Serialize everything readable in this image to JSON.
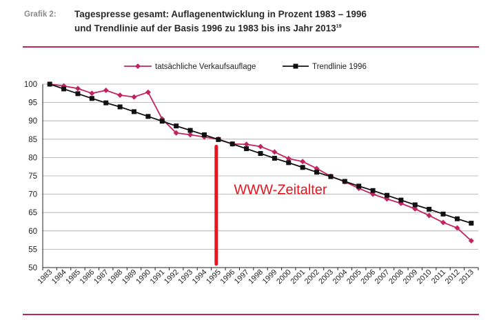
{
  "caption": {
    "label": "Grafik 2:",
    "title_line1": "Tagespresse gesamt: Auflagenentwicklung in Prozent 1983 – 1996",
    "title_line2": "und Trendlinie auf der Basis 1996 zu 1983 bis ins Jahr 2013",
    "footnote": "19"
  },
  "colors": {
    "actual": "#c0245f",
    "trend": "#111111",
    "marker_line": "#e8141e",
    "annotation": "#e8141e",
    "rule": "#c0245f"
  },
  "chart_data": {
    "type": "line",
    "title": "",
    "xlabel": "",
    "ylabel": "",
    "ylim": [
      50,
      100
    ],
    "yticks": [
      100,
      95,
      90,
      85,
      80,
      75,
      70,
      65,
      60,
      55,
      50
    ],
    "grid": "horizontal",
    "legend_position": "top",
    "categories": [
      "1983",
      "1984",
      "1985",
      "1986",
      "1987",
      "1988",
      "1989",
      "1990",
      "1991",
      "1992",
      "1993",
      "1994",
      "1995",
      "1996",
      "1997",
      "1998",
      "1999",
      "2000",
      "2001",
      "2002",
      "2003",
      "2004",
      "2005",
      "2006",
      "2007",
      "2008",
      "2009",
      "2010",
      "2011",
      "2012",
      "2013"
    ],
    "series": [
      {
        "name": "tatsächliche Verkaufsauflage",
        "marker": "diamond",
        "values": [
          100,
          99.5,
          98.8,
          97.5,
          98.3,
          97,
          96.5,
          97.8,
          90.5,
          86.7,
          86.2,
          85.6,
          85,
          83.7,
          83.6,
          83,
          81.5,
          79.7,
          78.9,
          77,
          74.9,
          73.4,
          71.6,
          70,
          68.7,
          67.5,
          66,
          64.2,
          62.3,
          60.8,
          57.3
        ]
      },
      {
        "name": "Trendlinie 1996",
        "marker": "square",
        "values": [
          100,
          98.7,
          97.4,
          96.1,
          94.9,
          93.8,
          92.5,
          91.2,
          89.9,
          88.6,
          87.4,
          86.2,
          84.9,
          83.7,
          82.4,
          81.1,
          79.8,
          78.6,
          77.3,
          76.0,
          74.8,
          73.5,
          72.2,
          71.0,
          69.7,
          68.4,
          67.1,
          65.9,
          64.6,
          63.3,
          62.1
        ]
      }
    ],
    "annotations": [
      {
        "type": "vertical-marker",
        "x": "1995",
        "y_from": 51,
        "y_to": 83
      },
      {
        "type": "text",
        "text": "WWW-Zeitalter",
        "x": "1996.5",
        "y": 71
      }
    ]
  }
}
